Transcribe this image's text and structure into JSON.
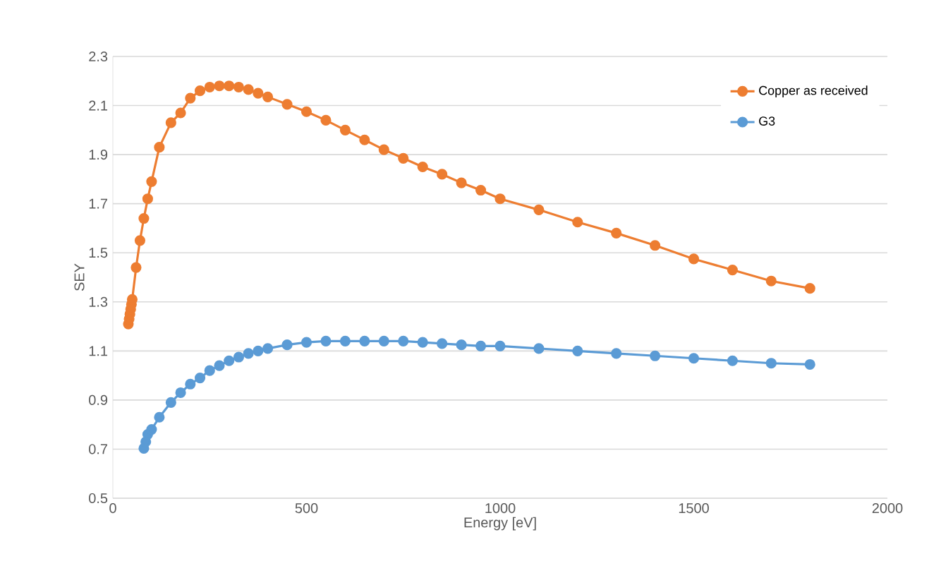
{
  "chart_data": {
    "type": "line",
    "xlabel": "Energy [eV]",
    "ylabel": "SEY",
    "xlim": [
      0,
      2000
    ],
    "ylim": [
      0.5,
      2.3
    ],
    "xticks": [
      0,
      500,
      1000,
      1500,
      2000
    ],
    "yticks": [
      0.5,
      0.7,
      0.9,
      1.1,
      1.3,
      1.5,
      1.7,
      1.9,
      2.1,
      2.3
    ],
    "grid": "y",
    "legend": "top right",
    "marker": "circle",
    "line_style": "solid",
    "series": [
      {
        "name": "Copper as received",
        "color": "#ed7d31",
        "x": [
          40,
          42,
          44,
          46,
          48,
          50,
          60,
          70,
          80,
          90,
          100,
          120,
          150,
          175,
          200,
          225,
          250,
          275,
          300,
          325,
          350,
          375,
          400,
          450,
          500,
          550,
          600,
          650,
          700,
          750,
          800,
          850,
          900,
          950,
          1000,
          1100,
          1200,
          1300,
          1400,
          1500,
          1600,
          1700,
          1800
        ],
        "values": [
          1.21,
          1.23,
          1.25,
          1.27,
          1.29,
          1.31,
          1.44,
          1.55,
          1.64,
          1.72,
          1.79,
          1.93,
          2.03,
          2.07,
          2.13,
          2.16,
          2.175,
          2.18,
          2.18,
          2.175,
          2.165,
          2.15,
          2.135,
          2.105,
          2.075,
          2.04,
          2.0,
          1.96,
          1.92,
          1.885,
          1.85,
          1.82,
          1.785,
          1.755,
          1.72,
          1.675,
          1.625,
          1.58,
          1.53,
          1.475,
          1.43,
          1.385,
          1.355
        ]
      },
      {
        "name": "G3",
        "color": "#5b9bd5",
        "x": [
          80,
          85,
          90,
          100,
          120,
          150,
          175,
          200,
          225,
          250,
          275,
          300,
          325,
          350,
          375,
          400,
          450,
          500,
          550,
          600,
          650,
          700,
          750,
          800,
          850,
          900,
          950,
          1000,
          1100,
          1200,
          1300,
          1400,
          1500,
          1600,
          1700,
          1800
        ],
        "values": [
          0.703,
          0.73,
          0.76,
          0.78,
          0.83,
          0.89,
          0.93,
          0.965,
          0.99,
          1.02,
          1.04,
          1.06,
          1.075,
          1.09,
          1.1,
          1.11,
          1.125,
          1.135,
          1.14,
          1.14,
          1.14,
          1.14,
          1.14,
          1.135,
          1.13,
          1.125,
          1.12,
          1.12,
          1.11,
          1.1,
          1.09,
          1.08,
          1.07,
          1.06,
          1.05,
          1.045
        ]
      }
    ]
  }
}
